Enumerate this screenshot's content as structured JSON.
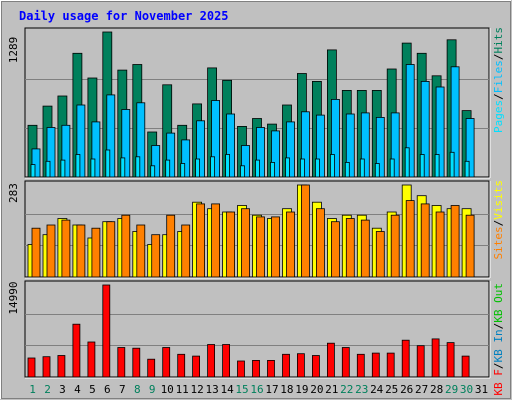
{
  "title": "Daily usage for November 2025",
  "colors": {
    "background": "#c0c0c0",
    "plot": "#c0c0c0",
    "title": "#0000ff",
    "hits": "#00805c",
    "files": "#00c0ff",
    "pages": "#00e0ff",
    "visits": "#ffff00",
    "sites": "#ff8000",
    "kbf": "#ff0000",
    "kbin": "#0080c0",
    "kbout": "#00c000",
    "day_weekday": "#000000",
    "day_weekend": "#00805c",
    "grid": "#808080"
  },
  "legend": {
    "hits": "Hits",
    "files": "Files",
    "pages": "Pages",
    "visits": "Visits",
    "sites": "Sites",
    "kbout": "KB Out",
    "kbin": "KB In",
    "kbf": "KB F",
    "sep": "/"
  },
  "days": [
    "1",
    "2",
    "3",
    "4",
    "5",
    "6",
    "7",
    "8",
    "9",
    "10",
    "11",
    "12",
    "13",
    "14",
    "15",
    "16",
    "17",
    "18",
    "19",
    "20",
    "21",
    "22",
    "23",
    "24",
    "25",
    "26",
    "27",
    "28",
    "29",
    "30",
    "31"
  ],
  "weekend_days": [
    1,
    2,
    8,
    9,
    15,
    16,
    22,
    23,
    29,
    30
  ],
  "chart_data": [
    {
      "type": "bar",
      "name": "hits-files-pages",
      "ymax_label": "1289",
      "ylim": [
        0,
        1289
      ],
      "series": [
        {
          "name": "Hits",
          "values": [
            460,
            630,
            720,
            1100,
            880,
            1289,
            950,
            1000,
            400,
            820,
            460,
            650,
            970,
            860,
            450,
            520,
            470,
            640,
            920,
            850,
            1130,
            770,
            770,
            770,
            960,
            1190,
            1100,
            900,
            1220,
            590,
            null
          ]
        },
        {
          "name": "Files",
          "values": [
            250,
            440,
            460,
            640,
            490,
            730,
            600,
            660,
            280,
            390,
            330,
            500,
            680,
            560,
            280,
            440,
            410,
            490,
            580,
            550,
            690,
            560,
            570,
            530,
            570,
            1000,
            850,
            800,
            980,
            520,
            null
          ]
        },
        {
          "name": "Pages",
          "values": [
            110,
            140,
            150,
            200,
            160,
            240,
            170,
            180,
            100,
            150,
            120,
            160,
            180,
            200,
            100,
            150,
            130,
            170,
            160,
            160,
            200,
            130,
            160,
            120,
            160,
            260,
            200,
            200,
            220,
            140,
            null
          ]
        }
      ]
    },
    {
      "type": "bar",
      "name": "visits-sites",
      "ymax_label": "283",
      "ylim": [
        0,
        283
      ],
      "series": [
        {
          "name": "Visits",
          "values": [
            100,
            130,
            180,
            160,
            120,
            170,
            180,
            140,
            100,
            130,
            140,
            230,
            210,
            200,
            220,
            190,
            180,
            210,
            283,
            230,
            180,
            190,
            190,
            150,
            200,
            283,
            250,
            220,
            210,
            210,
            null
          ]
        },
        {
          "name": "Sites",
          "values": [
            150,
            160,
            175,
            160,
            150,
            170,
            190,
            160,
            130,
            190,
            160,
            225,
            225,
            200,
            210,
            185,
            185,
            200,
            283,
            210,
            170,
            180,
            175,
            140,
            190,
            235,
            225,
            200,
            220,
            190,
            null
          ]
        }
      ]
    },
    {
      "type": "bar",
      "name": "kilobytes",
      "ymax_label": "14990",
      "ylim": [
        0,
        14990
      ],
      "series": [
        {
          "name": "KB F",
          "values": [
            3100,
            3300,
            3500,
            8600,
            5700,
            14990,
            4800,
            4700,
            2900,
            4800,
            3700,
            3400,
            5300,
            5300,
            2600,
            2700,
            2700,
            3700,
            3800,
            3500,
            5500,
            4800,
            3700,
            3900,
            3900,
            6000,
            5100,
            6200,
            5600,
            3400,
            null
          ]
        }
      ]
    }
  ]
}
